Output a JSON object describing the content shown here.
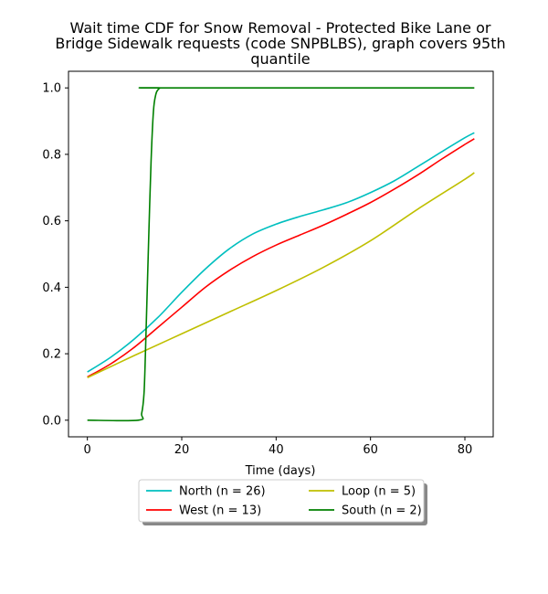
{
  "chart_data": {
    "type": "line",
    "title_lines": [
      "Wait time CDF for Snow Removal - Protected Bike Lane or",
      "Bridge Sidewalk  requests (code SNPBLBS), graph covers 95th",
      "quantile"
    ],
    "xlabel": "Time (days)",
    "ylabel": "",
    "xlim": [
      -4,
      86
    ],
    "ylim": [
      -0.05,
      1.05
    ],
    "xticks": [
      0,
      20,
      40,
      60,
      80
    ],
    "yticks": [
      0.0,
      0.2,
      0.4,
      0.6,
      0.8,
      1.0
    ],
    "ytick_labels": [
      "0.0",
      "0.2",
      "0.4",
      "0.6",
      "0.8",
      "1.0"
    ],
    "grid": false,
    "legend_placement": "below",
    "series": [
      {
        "name": "North (n = 26)",
        "color": "#00bfbf",
        "x": [
          0,
          5,
          10,
          15,
          20,
          25,
          30,
          35,
          40,
          45,
          50,
          55,
          60,
          65,
          70,
          75,
          80,
          82
        ],
        "y": [
          0.145,
          0.19,
          0.245,
          0.31,
          0.385,
          0.455,
          0.515,
          0.56,
          0.59,
          0.613,
          0.633,
          0.655,
          0.685,
          0.72,
          0.763,
          0.807,
          0.85,
          0.865
        ]
      },
      {
        "name": "West (n = 13)",
        "color": "#ff0000",
        "x": [
          0,
          5,
          10,
          15,
          20,
          25,
          30,
          35,
          40,
          45,
          50,
          55,
          60,
          65,
          70,
          75,
          80,
          82
        ],
        "y": [
          0.13,
          0.17,
          0.22,
          0.28,
          0.34,
          0.4,
          0.45,
          0.492,
          0.527,
          0.557,
          0.587,
          0.62,
          0.655,
          0.695,
          0.738,
          0.785,
          0.83,
          0.847
        ]
      },
      {
        "name": "Loop (n = 5)",
        "color": "#bfbf00",
        "x": [
          0,
          10,
          20,
          30,
          40,
          50,
          60,
          70,
          80,
          82
        ],
        "y": [
          0.128,
          0.195,
          0.26,
          0.325,
          0.39,
          0.46,
          0.54,
          0.635,
          0.725,
          0.745
        ]
      },
      {
        "name": "South (n = 2)",
        "color": "#008000",
        "x": [
          0,
          10.8,
          11.5,
          12,
          12.3,
          12.6,
          13,
          13.5,
          14,
          14.5,
          15,
          15.5,
          16,
          82
        ],
        "y": [
          0.0,
          0.0,
          0.02,
          0.08,
          0.2,
          0.35,
          0.55,
          0.78,
          0.93,
          0.98,
          0.995,
          1.0,
          1.0,
          1.0
        ]
      }
    ]
  }
}
